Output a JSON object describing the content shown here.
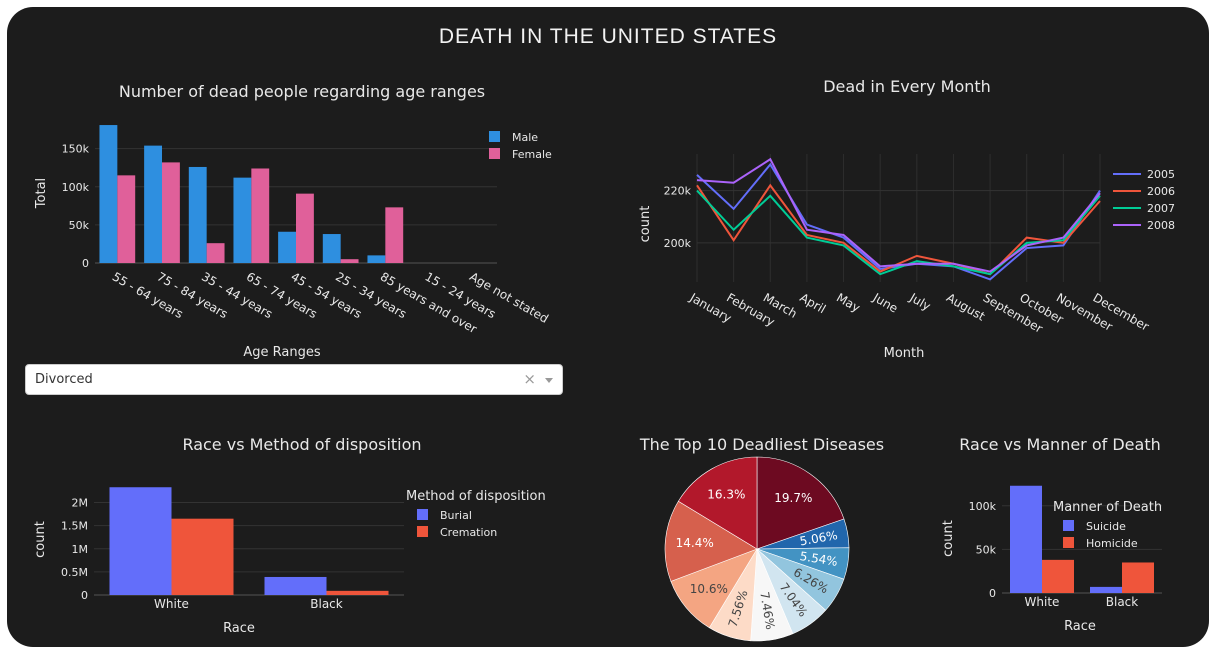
{
  "dashboard": {
    "title": "DEATH IN THE UNITED STATES"
  },
  "dropdown": {
    "value": "Divorced",
    "clear_symbol": "×"
  },
  "chart_data": [
    {
      "id": "age",
      "type": "bar",
      "title": "Number of dead people regarding age ranges",
      "xlabel": "Age Ranges",
      "ylabel": "Total",
      "categories": [
        "55 - 64 years",
        "75 - 84 years",
        "35 - 44 years",
        "65 - 74 years",
        "45 - 54 years",
        "25 - 34 years",
        "85 years and over",
        "15 - 24 years",
        "Age not stated"
      ],
      "series": [
        {
          "name": "Male",
          "color": "#2e8fe0",
          "values": [
            181000,
            154000,
            126000,
            112000,
            41000,
            38000,
            10000,
            0,
            0
          ]
        },
        {
          "name": "Female",
          "color": "#e0609a",
          "values": [
            115000,
            132000,
            26000,
            124000,
            91000,
            5000,
            73000,
            0,
            0
          ]
        }
      ],
      "ylim": [
        0,
        185000
      ],
      "yticks": [
        {
          "v": 0,
          "label": "0"
        },
        {
          "v": 50000,
          "label": "50k"
        },
        {
          "v": 100000,
          "label": "100k"
        },
        {
          "v": 150000,
          "label": "150k"
        }
      ],
      "legend": "top-right"
    },
    {
      "id": "month",
      "type": "line",
      "title": "Dead in Every Month",
      "xlabel": "Month",
      "ylabel": "count",
      "categories": [
        "January",
        "February",
        "March",
        "April",
        "May",
        "June",
        "July",
        "August",
        "September",
        "October",
        "November",
        "December"
      ],
      "series": [
        {
          "name": "2005",
          "color": "#636efa",
          "values": [
            226000,
            213000,
            230000,
            207000,
            202000,
            190000,
            192000,
            191000,
            186000,
            198000,
            199000,
            220000
          ]
        },
        {
          "name": "2006",
          "color": "#ef553b",
          "values": [
            222000,
            201000,
            222000,
            203000,
            200000,
            189000,
            195000,
            192000,
            188000,
            202000,
            200000,
            216000
          ]
        },
        {
          "name": "2007",
          "color": "#00cc96",
          "values": [
            220000,
            205000,
            218000,
            202000,
            199000,
            188000,
            193000,
            191000,
            188000,
            200000,
            201000,
            218000
          ]
        },
        {
          "name": "2008",
          "color": "#ab63fa",
          "values": [
            224000,
            223000,
            232000,
            205000,
            203000,
            191000,
            192000,
            192000,
            189000,
            199000,
            202000,
            219000
          ]
        }
      ],
      "ylim": [
        185000,
        234000
      ],
      "yticks": [
        {
          "v": 200000,
          "label": "200k"
        },
        {
          "v": 220000,
          "label": "220k"
        }
      ],
      "legend": "top-right"
    },
    {
      "id": "race-disp",
      "type": "bar",
      "title": "Race vs Method of disposition",
      "xlabel": "Race",
      "ylabel": "count",
      "categories": [
        "White",
        "Black"
      ],
      "series": [
        {
          "name": "Burial",
          "color": "#636efa",
          "values": [
            2330000,
            390000
          ]
        },
        {
          "name": "Cremation",
          "color": "#ef553b",
          "values": [
            1650000,
            90000
          ]
        }
      ],
      "ylim": [
        0,
        2400000
      ],
      "yticks": [
        {
          "v": 0,
          "label": "0"
        },
        {
          "v": 500000,
          "label": "0.5M"
        },
        {
          "v": 1000000,
          "label": "1M"
        },
        {
          "v": 1500000,
          "label": "1.5M"
        },
        {
          "v": 2000000,
          "label": "2M"
        }
      ],
      "legend_title": "Method of disposition",
      "legend": "right"
    },
    {
      "id": "diseases",
      "type": "pie",
      "title": "The Top 10 Deadliest Diseases",
      "values": [
        19.7,
        5.06,
        5.54,
        6.26,
        7.04,
        7.46,
        7.56,
        10.6,
        14.4,
        16.3
      ],
      "labels": [
        "19.7%",
        "5.06%",
        "5.54%",
        "6.26%",
        "7.04%",
        "7.46%",
        "7.56%",
        "10.6%",
        "14.4%",
        "16.3%"
      ],
      "colors": [
        "#6d0a21",
        "#2166ac",
        "#4393c3",
        "#92c5de",
        "#d1e5f0",
        "#f7f7f7",
        "#fddbc7",
        "#f4a582",
        "#d6604d",
        "#b2182b"
      ]
    },
    {
      "id": "manner",
      "type": "bar",
      "title": "Race vs Manner of Death",
      "xlabel": "Race",
      "ylabel": "count",
      "categories": [
        "White",
        "Black"
      ],
      "series": [
        {
          "name": "Suicide",
          "color": "#636efa",
          "values": [
            123000,
            7000
          ]
        },
        {
          "name": "Homicide",
          "color": "#ef553b",
          "values": [
            38000,
            35000
          ]
        }
      ],
      "ylim": [
        0,
        125000
      ],
      "yticks": [
        {
          "v": 0,
          "label": "0"
        },
        {
          "v": 50000,
          "label": "50k"
        },
        {
          "v": 100000,
          "label": "100k"
        }
      ],
      "legend_title": "Manner of Death",
      "legend": "top-right"
    }
  ]
}
